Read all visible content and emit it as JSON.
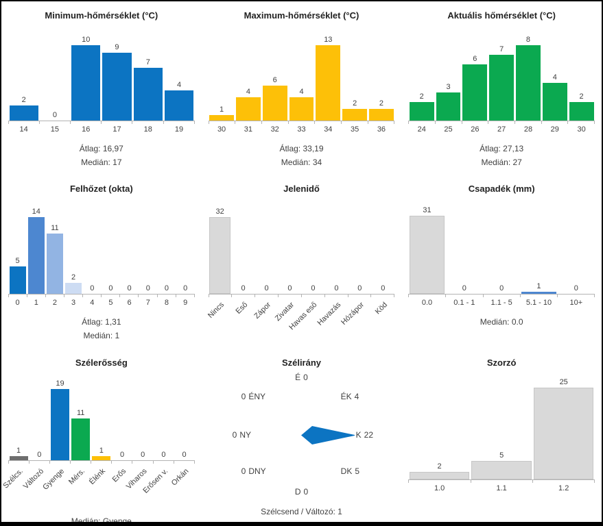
{
  "colors": {
    "blue": "#0c74c2",
    "yellow": "#fdc008",
    "green": "#0ba950",
    "gray": "#d9d9d9",
    "dark_gray": "#6e6e6e",
    "medium_blue": "#4d87d0",
    "light_blue": "#92b4e3",
    "pale_blue": "#cddcf3",
    "axis": "#b3b3b3"
  },
  "chart_data": [
    {
      "type": "bar",
      "title": "Minimum-hőmérséklet (°C)",
      "categories": [
        "14",
        "15",
        "16",
        "17",
        "18",
        "19"
      ],
      "values": [
        2,
        0,
        10,
        9,
        7,
        4
      ],
      "bar_color": "#0c74c2",
      "stats": [
        "Átlag: 16,97",
        "Medián: 17"
      ]
    },
    {
      "type": "bar",
      "title": "Maximum-hőmérséklet (°C)",
      "categories": [
        "30",
        "31",
        "32",
        "33",
        "34",
        "35",
        "36"
      ],
      "values": [
        1,
        4,
        6,
        4,
        13,
        2,
        2
      ],
      "bar_color": "#fdc008",
      "stats": [
        "Átlag: 33,19",
        "Medián: 34"
      ]
    },
    {
      "type": "bar",
      "title": "Aktuális hőmérséklet (°C)",
      "categories": [
        "24",
        "25",
        "26",
        "27",
        "28",
        "29",
        "30"
      ],
      "values": [
        2,
        3,
        6,
        7,
        8,
        4,
        2
      ],
      "bar_color": "#0ba950",
      "stats": [
        "Átlag: 27,13",
        "Medián: 27"
      ]
    },
    {
      "type": "bar",
      "title": "Felhőzet (okta)",
      "categories": [
        "0",
        "1",
        "2",
        "3",
        "4",
        "5",
        "6",
        "7",
        "8",
        "9"
      ],
      "values": [
        5,
        14,
        11,
        2,
        0,
        0,
        0,
        0,
        0,
        0
      ],
      "bar_colors": [
        "#0c74c2",
        "#4d87d0",
        "#92b4e3",
        "#cddcf3",
        "#d9d9d9",
        "#d9d9d9",
        "#d9d9d9",
        "#d9d9d9",
        "#d9d9d9",
        "#d9d9d9"
      ],
      "stats": [
        "Átlag: 1,31",
        "Medián: 1"
      ]
    },
    {
      "type": "bar",
      "title": "Jelenidő",
      "categories": [
        "Nincs",
        "Eső",
        "Zápor",
        "Zivatar",
        "Havas eső",
        "Havazás",
        "Hózápor",
        "Köd"
      ],
      "values": [
        32,
        0,
        0,
        0,
        0,
        0,
        0,
        0
      ],
      "bar_color": "#d9d9d9",
      "rotated_labels": true,
      "stats": []
    },
    {
      "type": "bar",
      "title": "Csapadék (mm)",
      "categories": [
        "0.0",
        "0.1 - 1",
        "1.1 - 5",
        "5.1 - 10",
        "10+"
      ],
      "values": [
        31,
        0,
        0,
        1,
        0
      ],
      "bar_colors": [
        "#d9d9d9",
        "#d9d9d9",
        "#d9d9d9",
        "#4d87d0",
        "#d9d9d9"
      ],
      "stats": [
        "Medián: 0.0"
      ]
    },
    {
      "type": "bar",
      "title": "Szélerősség",
      "categories": [
        "Szélcs.",
        "Változó",
        "Gyenge",
        "Mérs.",
        "Élénk",
        "Erős",
        "Viharos",
        "Erősen v.",
        "Orkán"
      ],
      "values": [
        1,
        0,
        19,
        11,
        1,
        0,
        0,
        0,
        0
      ],
      "bar_colors": [
        "#6e6e6e",
        "#d9d9d9",
        "#0c74c2",
        "#0ba950",
        "#fdc008",
        "#d9d9d9",
        "#d9d9d9",
        "#d9d9d9",
        "#d9d9d9"
      ],
      "rotated_labels": true,
      "stats": [
        "Medián: Gyenge"
      ]
    },
    {
      "type": "wind_rose",
      "title": "Szélirány",
      "directions": [
        {
          "dir": "N",
          "label": "É",
          "value": 0
        },
        {
          "dir": "NE",
          "label": "ÉK",
          "value": 4
        },
        {
          "dir": "E",
          "label": "K",
          "value": 22
        },
        {
          "dir": "SE",
          "label": "DK",
          "value": 5
        },
        {
          "dir": "S",
          "label": "D",
          "value": 0
        },
        {
          "dir": "SW",
          "label": "DNY",
          "value": 0
        },
        {
          "dir": "W",
          "label": "NY",
          "value": 0
        },
        {
          "dir": "NW",
          "label": "ÉNY",
          "value": 0
        }
      ],
      "arrow_direction": "E",
      "arrow_color": "#0c74c2",
      "calm_label": "Szélcsend / Változó: 1"
    },
    {
      "type": "bar",
      "title": "Szorzó",
      "categories": [
        "1.0",
        "1.1",
        "1.2"
      ],
      "values": [
        2,
        5,
        25
      ],
      "bar_color": "#d9d9d9",
      "stats": []
    }
  ]
}
